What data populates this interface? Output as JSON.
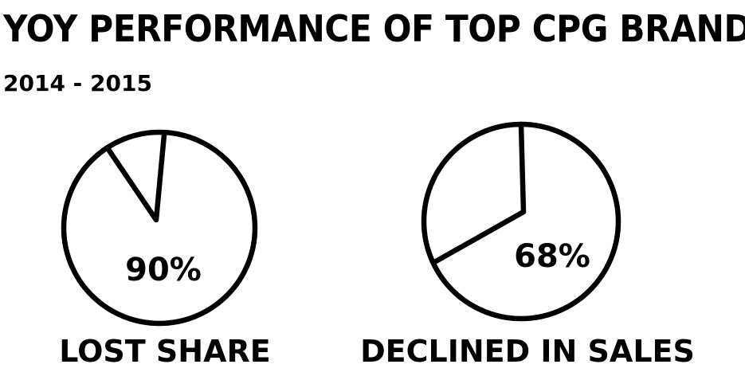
{
  "title": "YOY PERFORMANCE OF TOP CPG BRANDS",
  "subtitle": "2014 - 2015",
  "chart_data": [
    {
      "type": "pie",
      "value_percent": 90,
      "value_label": "90%",
      "label": "LOST SHARE"
    },
    {
      "type": "pie",
      "value_percent": 68,
      "value_label": "68%",
      "label": "DECLINED IN SALES"
    }
  ]
}
